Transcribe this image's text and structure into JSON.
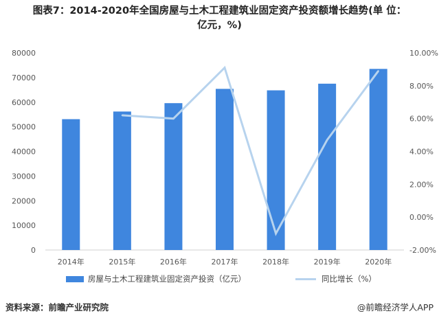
{
  "title": {
    "line1": "图表7：2014-2020年全国房屋与土木工程建筑业固定资产投资额增长趋势(单 位：",
    "line2": "亿元，%)"
  },
  "chart_data": {
    "type": "bar",
    "categories": [
      "2014年",
      "2015年",
      "2016年",
      "2017年",
      "2018年",
      "2019年",
      "2020年"
    ],
    "series": [
      {
        "name": "房屋与土木工程建筑业固定资产投资（亿元）",
        "type": "bar",
        "axis": "left",
        "color": "#3f86de",
        "values": [
          53100,
          56200,
          59600,
          65400,
          64800,
          67500,
          73500
        ]
      },
      {
        "name": "同比增长（%）",
        "type": "line",
        "axis": "right",
        "color": "#b7d3ee",
        "values": [
          null,
          6.2,
          6.0,
          9.1,
          -1.0,
          4.7,
          8.9
        ]
      }
    ],
    "y_left": {
      "min": 0,
      "max": 80000,
      "step": 10000,
      "ticks": [
        "0",
        "10000",
        "20000",
        "30000",
        "40000",
        "50000",
        "60000",
        "70000",
        "80000"
      ]
    },
    "y_right": {
      "min": -2,
      "max": 10,
      "step": 2,
      "ticks": [
        "-2.00%",
        "0.00%",
        "2.00%",
        "4.00%",
        "6.00%",
        "8.00%",
        "10.00%"
      ]
    },
    "grid": false,
    "legend": "bottom"
  },
  "footer": {
    "source": "资料来源：前瞻产业研究院",
    "brand": "@前瞻经济学人APP"
  }
}
